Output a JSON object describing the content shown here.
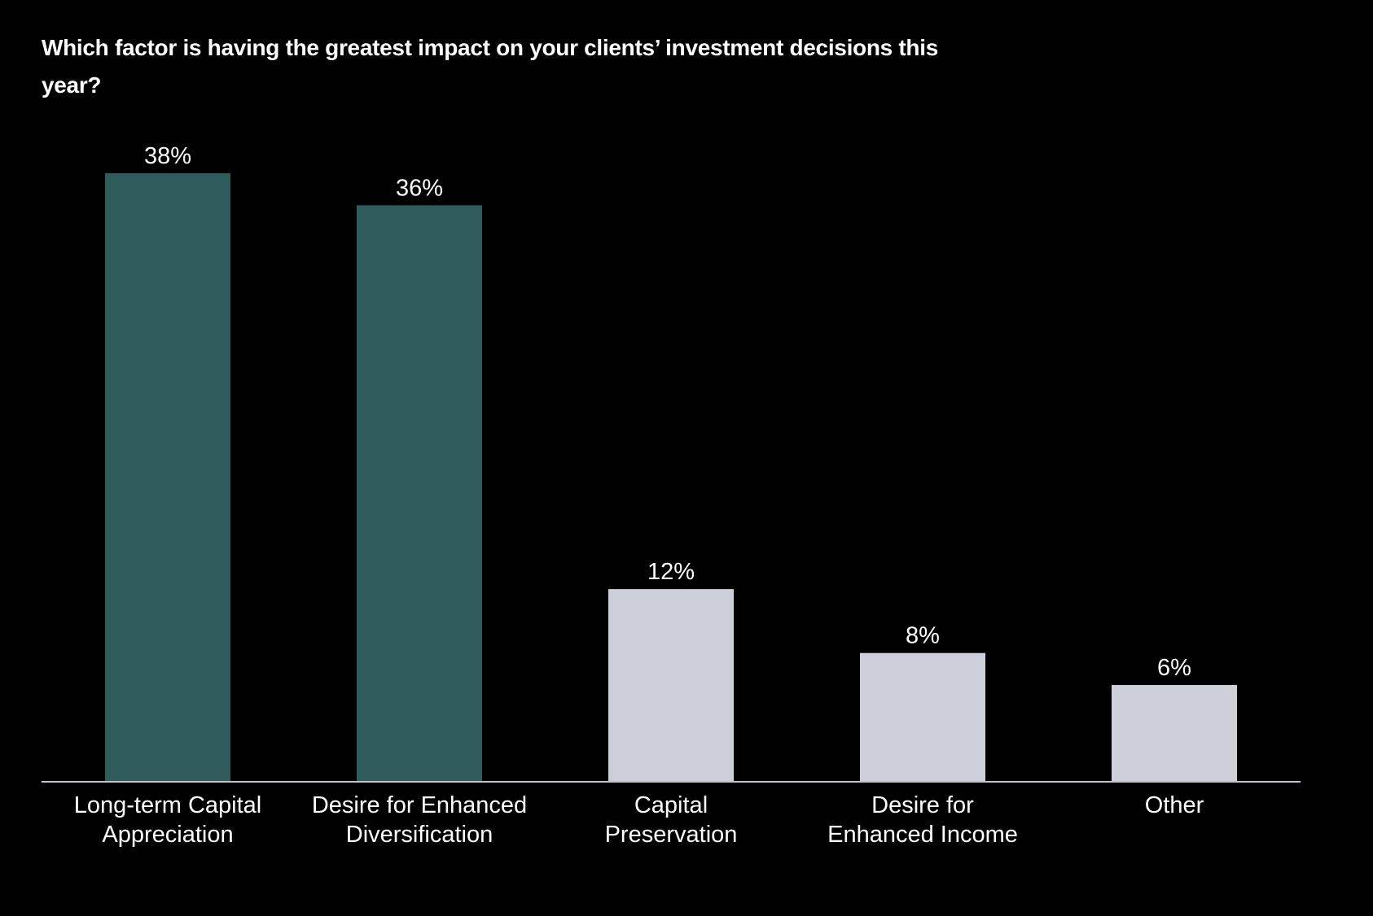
{
  "chart_data": {
    "type": "bar",
    "title": "Which factor is having the greatest impact on your clients’ investment decisions this year?",
    "categories": [
      [
        "Long-term Capital",
        "Appreciation"
      ],
      [
        "Desire for Enhanced",
        "Diversification"
      ],
      [
        "Capital",
        "Preservation"
      ],
      [
        "Desire for",
        "Enhanced Income"
      ],
      [
        "Other"
      ]
    ],
    "values": [
      38,
      36,
      12,
      8,
      6
    ],
    "value_labels": [
      "38%",
      "36%",
      "12%",
      "8%",
      "6%"
    ],
    "ylim": [
      0,
      38
    ],
    "grid": false,
    "legend": "none",
    "colors": [
      "#2f5c5a",
      "#2f5c5a",
      "#cdd0da",
      "#cdd0da",
      "#cdd0da"
    ],
    "baseline_color": "#bfc3cc"
  }
}
